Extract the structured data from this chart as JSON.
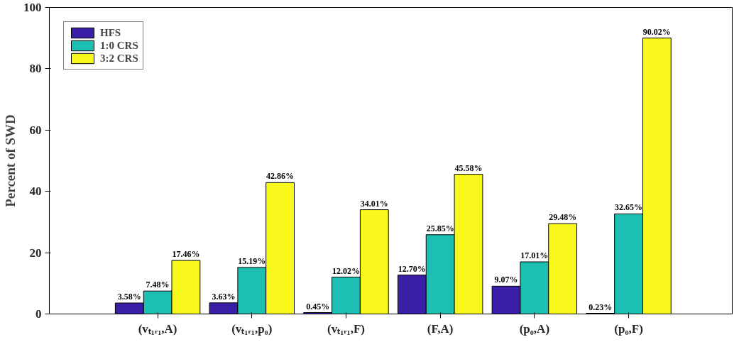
{
  "chart_data": {
    "type": "bar",
    "ylabel": "Percent of SWD",
    "categories": [
      "(vₜ₁ᵣ₁,A)",
      "(vₜ₁ᵣ₁,p₀)",
      "(vₜ₁ᵣ₁,F)",
      "(F,A)",
      "(p₀,A)",
      "(p₀,F)"
    ],
    "series": [
      {
        "name": "HFS",
        "color": "#3a1fa6",
        "values": [
          3.58,
          3.63,
          0.45,
          12.7,
          9.07,
          0.23
        ],
        "value_labels": [
          "3.58%",
          "3.63%",
          "0.45%",
          "12.70%",
          "9.07%",
          "0.23%"
        ]
      },
      {
        "name": "1:0 CRS",
        "color": "#1dbfb2",
        "values": [
          7.48,
          15.19,
          12.02,
          25.85,
          17.01,
          32.65
        ],
        "value_labels": [
          "7.48%",
          "15.19%",
          "12.02%",
          "25.85%",
          "17.01%",
          "32.65%"
        ]
      },
      {
        "name": "3:2 CRS",
        "color": "#f8f81c",
        "values": [
          17.46,
          42.86,
          34.01,
          45.58,
          29.48,
          90.02
        ],
        "value_labels": [
          "17.46%",
          "42.86%",
          "34.01%",
          "45.58%",
          "29.48%",
          "90.02%"
        ]
      }
    ],
    "ylim": [
      0,
      100
    ],
    "yticks": [
      0,
      20,
      40,
      60,
      80,
      100
    ],
    "grid": false,
    "legend": "top left"
  }
}
